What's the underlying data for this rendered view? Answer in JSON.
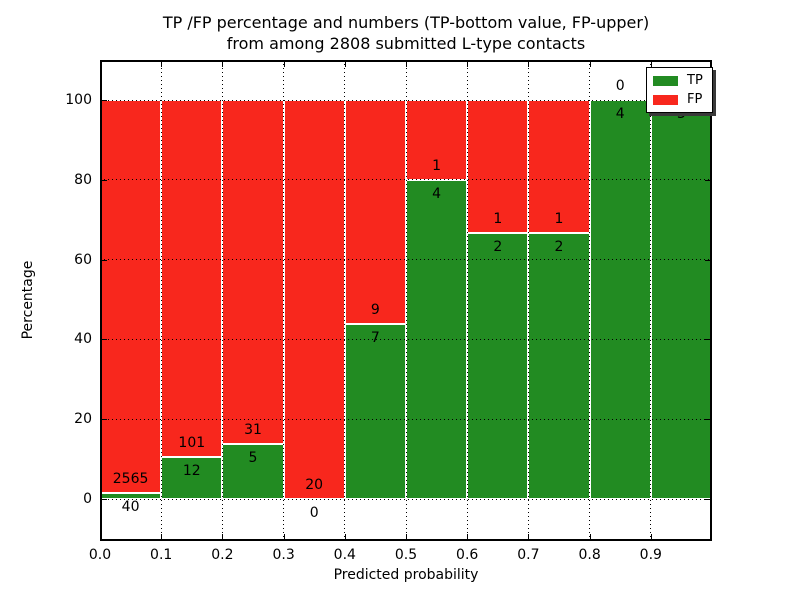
{
  "title": {
    "line1": "TP /FP percentage and numbers (TP-bottom value, FP-upper)",
    "line2": "from among 2808 submitted L-type contacts"
  },
  "axes": {
    "xlabel": "Predicted probability",
    "ylabel": "Percentage",
    "x_tick_labels": [
      "0.0",
      "0.1",
      "0.2",
      "0.3",
      "0.4",
      "0.5",
      "0.6",
      "0.7",
      "0.8",
      "0.9"
    ],
    "y_tick_labels": [
      "0",
      "20",
      "40",
      "60",
      "80",
      "100"
    ],
    "y_tick_values": [
      0,
      20,
      40,
      60,
      80,
      100
    ]
  },
  "legend": {
    "position": "upper right",
    "entries": [
      {
        "label": "TP",
        "color": "#228B22"
      },
      {
        "label": "FP",
        "color": "#F8271D"
      }
    ]
  },
  "colors": {
    "tp_green": "#228B22",
    "fp_red": "#F8271D",
    "text": "#000000",
    "background": "#ffffff",
    "bar_edge": "#ffffff"
  },
  "chart_data": {
    "type": "bar",
    "stacked": true,
    "orientation": "vertical",
    "title": "TP /FP percentage and numbers (TP-bottom value, FP-upper) from among 2808 submitted L-type contacts",
    "xlabel": "Predicted probability",
    "ylabel": "Percentage",
    "total_contacts": 2808,
    "bin_edges": [
      0.0,
      0.1,
      0.2,
      0.3,
      0.4,
      0.5,
      0.6,
      0.7,
      0.8,
      0.9,
      1.0
    ],
    "categories": [
      "0.0-0.1",
      "0.1-0.2",
      "0.2-0.3",
      "0.3-0.4",
      "0.4-0.5",
      "0.5-0.6",
      "0.6-0.7",
      "0.7-0.8",
      "0.8-0.9",
      "0.9-1.0"
    ],
    "series": [
      {
        "name": "TP",
        "stack_position": "bottom",
        "color": "#228B22",
        "counts": [
          40,
          12,
          5,
          0,
          7,
          4,
          2,
          2,
          4,
          3
        ]
      },
      {
        "name": "FP",
        "stack_position": "top",
        "color": "#F8271D",
        "counts": [
          2565,
          101,
          31,
          20,
          9,
          1,
          1,
          1,
          0,
          0
        ]
      }
    ],
    "tp_percent_of_bin": [
      1.54,
      10.62,
      13.89,
      0.0,
      43.75,
      80.0,
      66.67,
      66.67,
      100.0,
      100.0
    ],
    "bar_height_mode": "each bin stack sums to 100%; count labels: TP below boundary, FP above boundary",
    "xlim": [
      0.0,
      1.0
    ],
    "ylim": [
      -10.5,
      110
    ],
    "grid": true,
    "legend_position": "upper right"
  }
}
